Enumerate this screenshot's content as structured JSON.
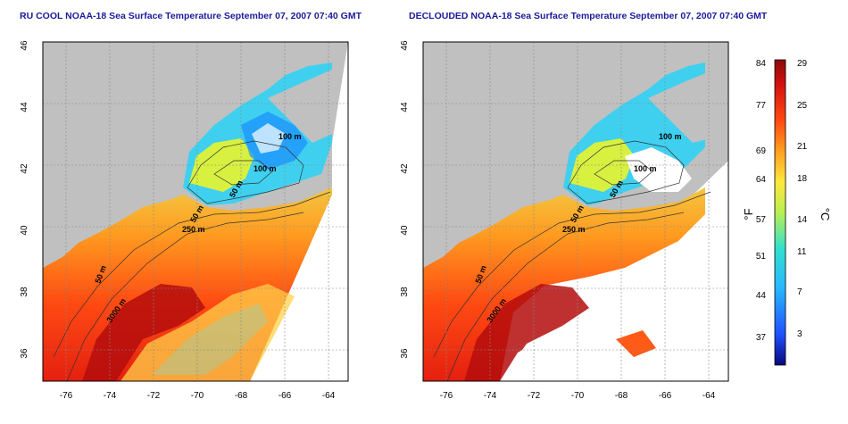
{
  "panels": [
    {
      "title": "RU COOL NOAA-18 Sea Surface Temperature September 07, 2007 07:40 GMT",
      "x_ticks": [
        "-76",
        "-74",
        "-72",
        "-70",
        "-68",
        "-66",
        "-64"
      ],
      "y_ticks": [
        "46",
        "44",
        "42",
        "40",
        "38",
        "36"
      ],
      "contour_labels": [
        "100 m",
        "100 m",
        "50 m",
        "250 m",
        "50 m",
        "3000 m",
        "50 m"
      ]
    },
    {
      "title": "DECLOUDED NOAA-18 Sea Surface Temperature September 07, 2007 07:40 GMT",
      "x_ticks": [
        "-76",
        "-74",
        "-72",
        "-70",
        "-68",
        "-66",
        "-64"
      ],
      "y_ticks": [
        "46",
        "44",
        "42",
        "40",
        "38",
        "36"
      ],
      "contour_labels": [
        "100 m",
        "100 m",
        "50 m",
        "250 m",
        "50 m",
        "3000 m",
        "50 m"
      ]
    }
  ],
  "colorbar": {
    "f_label": "°F",
    "c_label": "°C",
    "f_ticks": [
      "84",
      "77",
      "69",
      "64",
      "57",
      "51",
      "44",
      "37"
    ],
    "c_ticks": [
      "29",
      "25",
      "21",
      "18",
      "14",
      "11",
      "7",
      "3"
    ]
  },
  "colors": {
    "land": "#c0c0c0",
    "title": "#1a1a9c",
    "colorbar_stops": [
      "#08087a",
      "#1f4fff",
      "#27b7ff",
      "#2fe0d0",
      "#b8f050",
      "#ffe83a",
      "#ffa020",
      "#ff4a10",
      "#d41010",
      "#8c0a0a"
    ]
  }
}
